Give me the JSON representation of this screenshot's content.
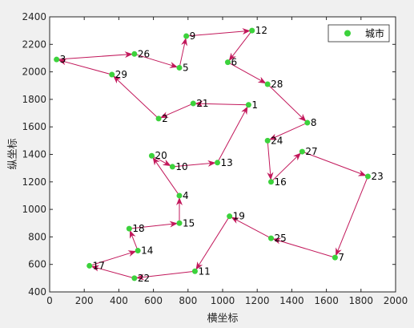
{
  "colors": {
    "route": "#c2185b",
    "marker": "#3cd23c",
    "axis": "#262626",
    "plot_bg": "#ffffff",
    "figure_bg": "#f0f0f0"
  },
  "chart_data": {
    "type": "scatter",
    "xlabel": "横坐标",
    "ylabel": "纵坐标",
    "xlim": [
      0,
      2000
    ],
    "ylim": [
      400,
      2400
    ],
    "xticks": [
      0,
      200,
      400,
      600,
      800,
      1000,
      1200,
      1400,
      1600,
      1800,
      2000
    ],
    "yticks": [
      400,
      600,
      800,
      1000,
      1200,
      1400,
      1600,
      1800,
      2000,
      2200,
      2400
    ],
    "grid": false,
    "legend": {
      "position": "top-right",
      "entries": [
        "城市"
      ]
    },
    "series": [
      {
        "name": "城市",
        "points": [
          {
            "id": "1",
            "x": 1150,
            "y": 1760
          },
          {
            "id": "2",
            "x": 630,
            "y": 1660
          },
          {
            "id": "3",
            "x": 40,
            "y": 2090
          },
          {
            "id": "4",
            "x": 750,
            "y": 1100
          },
          {
            "id": "5",
            "x": 750,
            "y": 2030
          },
          {
            "id": "6",
            "x": 1030,
            "y": 2070
          },
          {
            "id": "7",
            "x": 1650,
            "y": 650
          },
          {
            "id": "8",
            "x": 1490,
            "y": 1630
          },
          {
            "id": "9",
            "x": 790,
            "y": 2260
          },
          {
            "id": "10",
            "x": 710,
            "y": 1310
          },
          {
            "id": "11",
            "x": 840,
            "y": 550
          },
          {
            "id": "12",
            "x": 1170,
            "y": 2300
          },
          {
            "id": "13",
            "x": 970,
            "y": 1340
          },
          {
            "id": "14",
            "x": 510,
            "y": 700
          },
          {
            "id": "15",
            "x": 750,
            "y": 900
          },
          {
            "id": "16",
            "x": 1280,
            "y": 1200
          },
          {
            "id": "17",
            "x": 230,
            "y": 590
          },
          {
            "id": "18",
            "x": 460,
            "y": 860
          },
          {
            "id": "19",
            "x": 1040,
            "y": 950
          },
          {
            "id": "20",
            "x": 590,
            "y": 1390
          },
          {
            "id": "21",
            "x": 830,
            "y": 1770
          },
          {
            "id": "22",
            "x": 490,
            "y": 500
          },
          {
            "id": "23",
            "x": 1840,
            "y": 1240
          },
          {
            "id": "24",
            "x": 1260,
            "y": 1500
          },
          {
            "id": "25",
            "x": 1280,
            "y": 790
          },
          {
            "id": "26",
            "x": 490,
            "y": 2130
          },
          {
            "id": "27",
            "x": 1460,
            "y": 1420
          },
          {
            "id": "28",
            "x": 1260,
            "y": 1910
          },
          {
            "id": "29",
            "x": 360,
            "y": 1980
          }
        ]
      }
    ],
    "route": [
      "1",
      "21",
      "2",
      "29",
      "3",
      "26",
      "5",
      "9",
      "12",
      "6",
      "28",
      "8",
      "24",
      "16",
      "27",
      "23",
      "7",
      "25",
      "19",
      "11",
      "22",
      "17",
      "14",
      "18",
      "15",
      "4",
      "20",
      "10",
      "13",
      "1"
    ]
  }
}
